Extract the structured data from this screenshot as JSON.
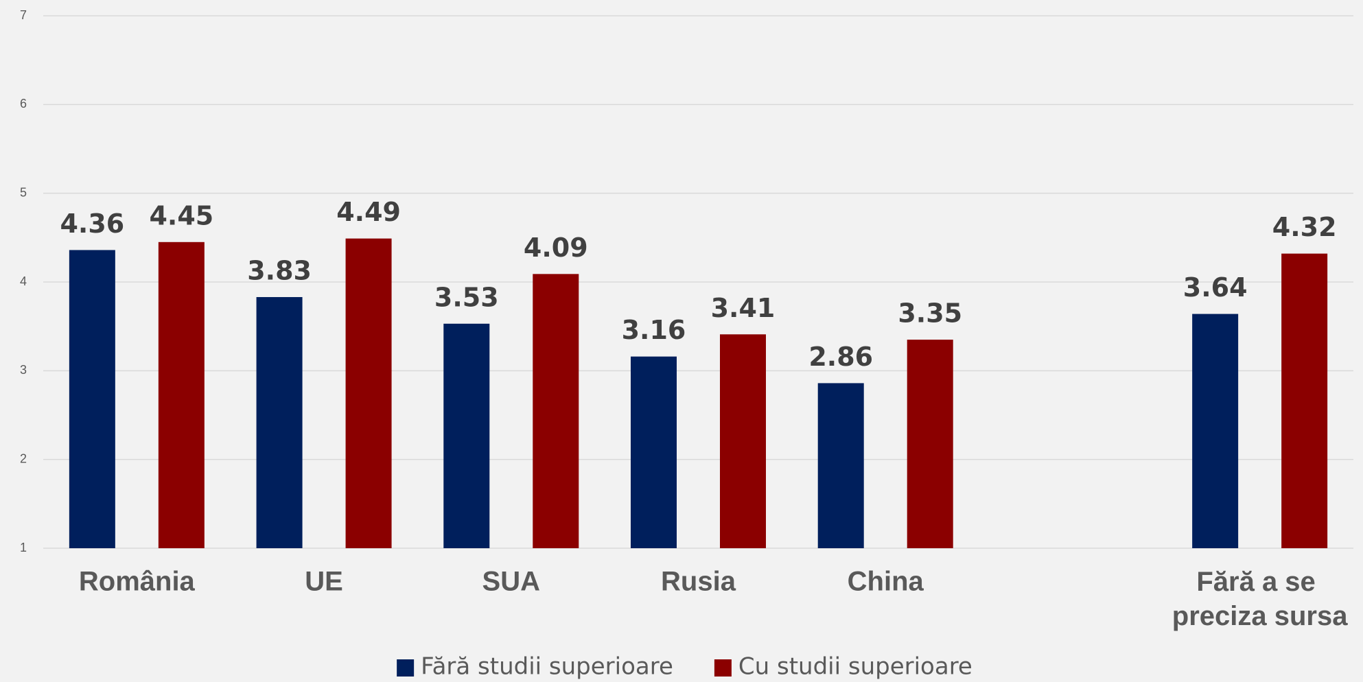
{
  "chart_data": {
    "type": "bar",
    "categories": [
      "România",
      "UE",
      "SUA",
      "Rusia",
      "China",
      null,
      "Fără a se preciza sursa"
    ],
    "series": [
      {
        "name": "Fără studii superioare",
        "color": "#001f5c",
        "values": [
          4.36,
          3.83,
          3.53,
          3.16,
          2.86,
          null,
          3.64
        ]
      },
      {
        "name": "Cu studii superioare",
        "color": "#8b0000",
        "values": [
          4.45,
          4.49,
          4.09,
          3.41,
          3.35,
          null,
          4.32
        ]
      }
    ],
    "ylim": [
      1,
      7
    ],
    "yticks": [
      1,
      2,
      3,
      4,
      5,
      6,
      7
    ],
    "grid": true,
    "legend": "bottom"
  }
}
